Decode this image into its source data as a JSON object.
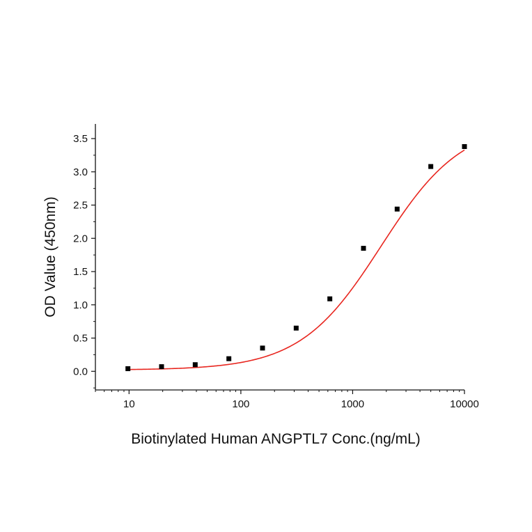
{
  "chart_data": {
    "type": "scatter",
    "title": "",
    "xlabel": "Biotinylated Human ANGPTL7 Conc.(ng/mL)",
    "ylabel": "OD Value (450nm)",
    "xscale": "log",
    "xlim": [
      5,
      10000
    ],
    "ylim": [
      -0.28,
      3.72
    ],
    "x_ticks": [
      "10",
      "100",
      "1000",
      "10000"
    ],
    "y_ticks": [
      "0.0",
      "0.5",
      "1.0",
      "1.5",
      "2.0",
      "2.5",
      "3.0",
      "3.5"
    ],
    "grid": false,
    "series": [
      {
        "marker": "square",
        "color": "#000000",
        "x": [
          9.77,
          19.53,
          39.06,
          78.13,
          156.25,
          312.5,
          625,
          1250,
          2500,
          5000,
          10000
        ],
        "y": [
          0.04,
          0.07,
          0.1,
          0.19,
          0.35,
          0.65,
          1.09,
          1.85,
          2.44,
          3.08,
          3.38
        ]
      }
    ],
    "fit_curve": {
      "type": "4-parameter logistic",
      "color": "#e8261f",
      "bottom": 0.02,
      "top": 3.75,
      "ec50": 1800,
      "hill": 1.2
    }
  }
}
